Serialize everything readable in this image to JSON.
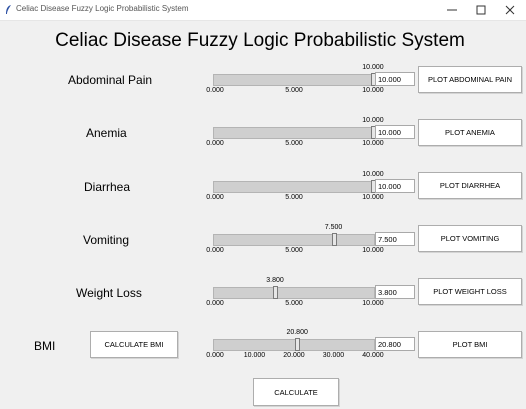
{
  "window": {
    "title": "Celiac Disease Fuzzy Logic Probabilistic System"
  },
  "heading": "Celiac Disease Fuzzy Logic Probabilistic System",
  "inputs": [
    {
      "label": "Abdominal Pain",
      "value": "10.000",
      "value_num": 10.0,
      "min": 0,
      "max": 10,
      "ticks": [
        "0.000",
        "5.000",
        "10.000"
      ],
      "entry": "10.000",
      "button": "PLOT ABDOMINAL PAIN"
    },
    {
      "label": "Anemia",
      "value": "10.000",
      "value_num": 10.0,
      "min": 0,
      "max": 10,
      "ticks": [
        "0.000",
        "5.000",
        "10.000"
      ],
      "entry": "10.000",
      "button": "PLOT ANEMIA"
    },
    {
      "label": "Diarrhea",
      "value": "10.000",
      "value_num": 10.0,
      "min": 0,
      "max": 10,
      "ticks": [
        "0.000",
        "5.000",
        "10.000"
      ],
      "entry": "10.000",
      "button": "PLOT DIARRHEA"
    },
    {
      "label": "Vomiting",
      "value": "7.500",
      "value_num": 7.5,
      "min": 0,
      "max": 10,
      "ticks": [
        "0.000",
        "5.000",
        "10.000"
      ],
      "entry": "7.500",
      "button": "PLOT VOMITING"
    },
    {
      "label": "Weight Loss",
      "value": "3.800",
      "value_num": 3.8,
      "min": 0,
      "max": 10,
      "ticks": [
        "0.000",
        "5.000",
        "10.000"
      ],
      "entry": "3.800",
      "button": "PLOT WEIGHT LOSS"
    },
    {
      "label": "BMI",
      "value": "20.800",
      "value_num": 20.8,
      "min": 0,
      "max": 40,
      "ticks": [
        "0.000",
        "10.000",
        "20.000",
        "30.000",
        "40.000"
      ],
      "entry": "20.800",
      "button": "PLOT BMI"
    }
  ],
  "calculate_bmi_button": "CALCULATE BMI",
  "calculate_button": "CALCULATE",
  "icons": {
    "app": "feather-icon",
    "minimize": "minimize-icon",
    "maximize": "maximize-icon",
    "close": "close-icon"
  }
}
